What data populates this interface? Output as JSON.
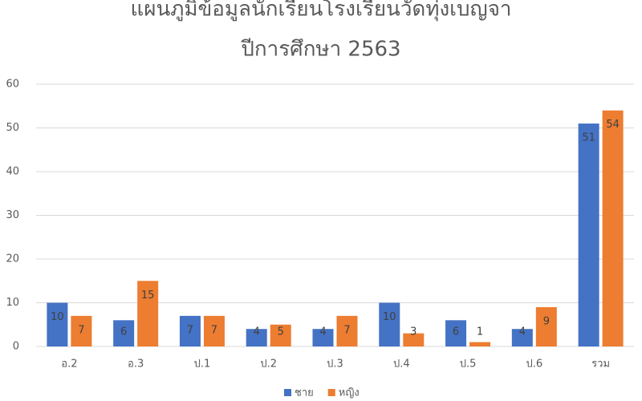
{
  "chart_data": {
    "type": "bar",
    "title": "แผนภูมิข้อมูลนักเรียนโรงเรียนวัดทุ่งเบญจา",
    "subtitle": "ปีการศึกษา 2563",
    "categories": [
      "อ.2",
      "อ.3",
      "ป.1",
      "ป.2",
      "ป.3",
      "ป.4",
      "ป.5",
      "ป.6",
      "รวม"
    ],
    "series": [
      {
        "name": "ชาย",
        "color": "#4472c4",
        "values": [
          10,
          6,
          7,
          4,
          4,
          10,
          6,
          4,
          51
        ]
      },
      {
        "name": "หญิง",
        "color": "#ed7d31",
        "values": [
          7,
          15,
          7,
          5,
          7,
          3,
          1,
          9,
          54
        ]
      }
    ],
    "ylim": [
      0,
      60
    ],
    "yticks": [
      0,
      10,
      20,
      30,
      40,
      50,
      60
    ],
    "grid": true,
    "legend": "bottom"
  }
}
